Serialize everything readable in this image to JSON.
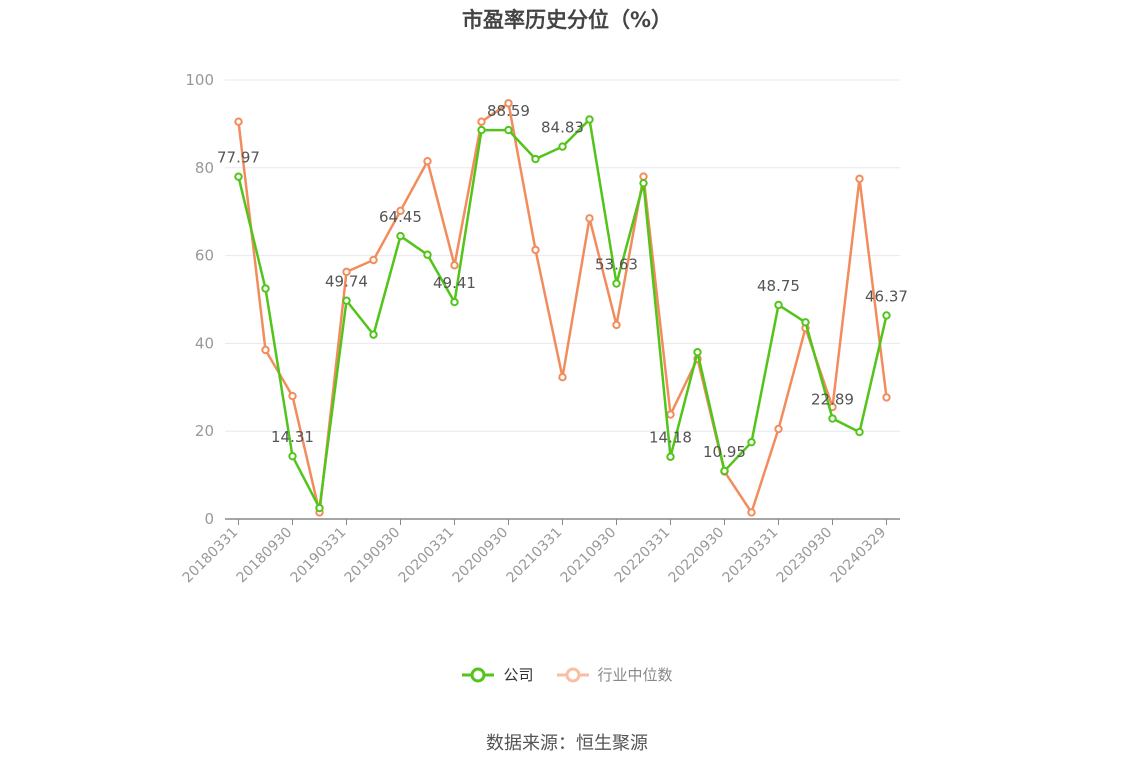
{
  "chart_data": {
    "type": "line",
    "title": "市盈率历史分位（%）",
    "xlabel": "",
    "ylabel": "",
    "ylim": [
      0,
      100
    ],
    "yticks": [
      0,
      20,
      40,
      60,
      80,
      100
    ],
    "grid": true,
    "legend_position": "bottom",
    "x_tick_labels": [
      "20180331",
      "20180930",
      "20190331",
      "20190930",
      "20200331",
      "20200930",
      "20210331",
      "20210930",
      "20220331",
      "20220930",
      "20230331",
      "20230930",
      "20240329"
    ],
    "series": [
      {
        "name": "公司",
        "color": "#52c41a",
        "values": [
          77.97,
          52.5,
          14.31,
          2.5,
          49.74,
          42.0,
          64.45,
          60.2,
          49.41,
          88.59,
          88.59,
          82.0,
          84.83,
          91.0,
          53.63,
          76.5,
          14.18,
          38.0,
          10.95,
          17.5,
          48.75,
          44.8,
          22.89,
          19.8,
          46.37
        ],
        "labels": {
          "0": "77.97",
          "2": "14.31",
          "4": "49.74",
          "6": "64.45",
          "8": "49.41",
          "10": "88.59",
          "12": "84.83",
          "14": "53.63",
          "16": "14.18",
          "18": "10.95",
          "20": "48.75",
          "22": "22.89",
          "24": "46.37"
        }
      },
      {
        "name": "行业中位数",
        "color": "#f28c5c",
        "values": [
          90.5,
          38.5,
          28.0,
          1.5,
          56.3,
          59.0,
          70.2,
          81.5,
          57.8,
          90.5,
          94.7,
          61.3,
          32.3,
          68.5,
          44.2,
          78.0,
          23.8,
          36.5,
          10.8,
          1.5,
          20.5,
          43.5,
          25.5,
          77.5,
          27.7
        ]
      }
    ]
  },
  "legend": {
    "company": "公司",
    "industry": "行业中位数"
  },
  "source": "数据来源：恒生聚源"
}
